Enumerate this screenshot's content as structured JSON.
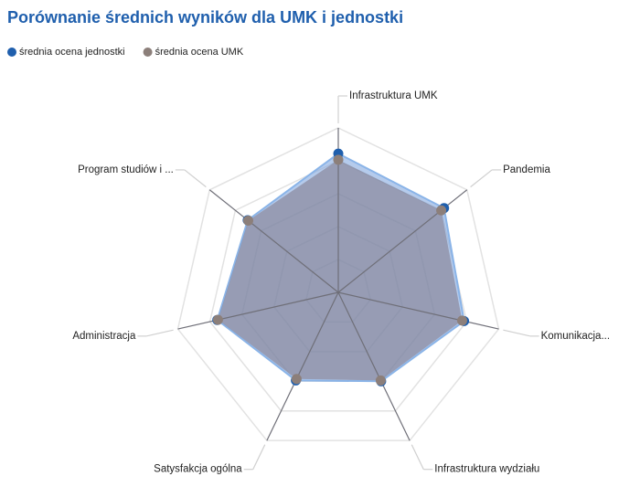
{
  "chart_data": {
    "type": "radar",
    "title": "Porównanie średnich wyników dla UMK i jednostki",
    "categories": [
      "Infrastruktura UMK",
      "Pandemia",
      "Komunikacja...",
      "Infrastruktura wydziału",
      "Satysfakcja ogólna",
      "Administracja",
      "Program studiów i ..."
    ],
    "series": [
      {
        "name": "średnia ocena jednostki",
        "color": "#1f5fad",
        "values": [
          4.22,
          4.11,
          3.92,
          3.0,
          2.97,
          3.77,
          3.52
        ]
      },
      {
        "name": "średnia ocena UMK",
        "color": "#8c7f7a",
        "values": [
          4.03,
          4.0,
          3.86,
          2.97,
          2.92,
          3.75,
          3.5
        ]
      }
    ],
    "ylim": [
      0,
      5
    ],
    "yticks": [
      1,
      2,
      3,
      4,
      5
    ],
    "grid": true,
    "legend": "top-left"
  }
}
